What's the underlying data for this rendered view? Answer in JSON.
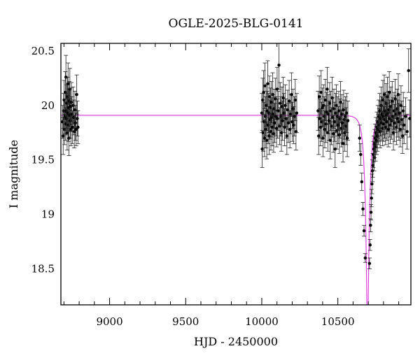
{
  "chart_data": {
    "type": "scatter",
    "title": "OGLE-2025-BLG-0141",
    "xlabel": "HJD - 2450000",
    "ylabel": "I magnitude",
    "xlim": [
      8680,
      10980
    ],
    "ylim": [
      20.57,
      18.17
    ],
    "y_inverted": true,
    "xticks": [
      9000,
      9500,
      10000,
      10500
    ],
    "yticks": [
      18.5,
      19,
      19.5,
      20,
      20.5
    ],
    "ytick_labels": [
      "18.5",
      "19",
      "19.5",
      "20",
      "20.5"
    ],
    "grid": false,
    "colors": {
      "points": "#000000",
      "model": "#e040e0"
    },
    "model": {
      "baseline_mag": 19.91,
      "peak_hjd": 10695,
      "peak_mag": 17.8,
      "t_E_days": 30
    },
    "series": [
      {
        "points": [
          [
            8691,
            19.85,
            0.15
          ],
          [
            8695,
            19.72,
            0.17
          ],
          [
            8698,
            19.95,
            0.16
          ],
          [
            8701,
            20.05,
            0.18
          ],
          [
            8704,
            19.78,
            0.14
          ],
          [
            8706,
            19.9,
            0.16
          ],
          [
            8709,
            20.12,
            0.19
          ],
          [
            8711,
            19.83,
            0.15
          ],
          [
            8713,
            20.26,
            0.2
          ],
          [
            8715,
            19.95,
            0.16
          ],
          [
            8717,
            19.88,
            0.15
          ],
          [
            8719,
            20.02,
            0.17
          ],
          [
            8721,
            19.75,
            0.16
          ],
          [
            8723,
            20.08,
            0.18
          ],
          [
            8725,
            19.93,
            0.16
          ],
          [
            8727,
            20.2,
            0.19
          ],
          [
            8729,
            19.82,
            0.15
          ],
          [
            8731,
            19.98,
            0.17
          ],
          [
            8733,
            19.7,
            0.16
          ],
          [
            8735,
            20.04,
            0.18
          ],
          [
            8737,
            19.91,
            0.15
          ],
          [
            8739,
            20.15,
            0.19
          ],
          [
            8741,
            19.86,
            0.16
          ],
          [
            8743,
            19.99,
            0.17
          ],
          [
            8746,
            19.78,
            0.15
          ],
          [
            8749,
            20.03,
            0.18
          ],
          [
            8752,
            19.92,
            0.16
          ],
          [
            8756,
            19.8,
            0.15
          ],
          [
            8760,
            20.0,
            0.17
          ],
          [
            8764,
            19.89,
            0.16
          ],
          [
            8768,
            19.76,
            0.15
          ],
          [
            8772,
            19.96,
            0.17
          ],
          [
            8776,
            19.84,
            0.16
          ],
          [
            8780,
            19.78,
            0.15
          ],
          [
            8784,
            20.1,
            0.18
          ],
          [
            8788,
            19.88,
            0.16
          ],
          [
            8792,
            19.8,
            0.15
          ],
          [
            10000,
            19.93,
            0.18
          ],
          [
            10003,
            19.6,
            0.17
          ],
          [
            10006,
            20.05,
            0.2
          ],
          [
            10009,
            19.75,
            0.17
          ],
          [
            10012,
            20.12,
            0.2
          ],
          [
            10015,
            19.85,
            0.18
          ],
          [
            10018,
            19.7,
            0.17
          ],
          [
            10021,
            20.18,
            0.21
          ],
          [
            10024,
            19.9,
            0.18
          ],
          [
            10027,
            19.78,
            0.17
          ],
          [
            10030,
            20.0,
            0.19
          ],
          [
            10033,
            19.68,
            0.17
          ],
          [
            10036,
            19.95,
            0.18
          ],
          [
            10039,
            20.2,
            0.21
          ],
          [
            10042,
            19.82,
            0.17
          ],
          [
            10045,
            19.93,
            0.18
          ],
          [
            10048,
            19.72,
            0.17
          ],
          [
            10051,
            20.08,
            0.19
          ],
          [
            10054,
            19.87,
            0.18
          ],
          [
            10057,
            19.98,
            0.18
          ],
          [
            10060,
            19.76,
            0.17
          ],
          [
            10063,
            20.03,
            0.19
          ],
          [
            10066,
            19.89,
            0.18
          ],
          [
            10069,
            19.8,
            0.17
          ],
          [
            10072,
            20.1,
            0.2
          ],
          [
            10075,
            19.92,
            0.18
          ],
          [
            10078,
            19.74,
            0.17
          ],
          [
            10081,
            19.97,
            0.18
          ],
          [
            10085,
            19.84,
            0.18
          ],
          [
            10089,
            20.06,
            0.19
          ],
          [
            10093,
            19.9,
            0.18
          ],
          [
            10097,
            19.79,
            0.17
          ],
          [
            10101,
            20.15,
            0.2
          ],
          [
            10105,
            19.88,
            0.18
          ],
          [
            10109,
            19.95,
            0.18
          ],
          [
            10113,
            20.37,
            0.22
          ],
          [
            10117,
            19.81,
            0.17
          ],
          [
            10121,
            20.02,
            0.19
          ],
          [
            10125,
            19.9,
            0.18
          ],
          [
            10129,
            19.75,
            0.17
          ],
          [
            10133,
            19.99,
            0.18
          ],
          [
            10137,
            19.86,
            0.18
          ],
          [
            10141,
            20.07,
            0.19
          ],
          [
            10145,
            19.93,
            0.18
          ],
          [
            10150,
            19.8,
            0.17
          ],
          [
            10155,
            20.0,
            0.19
          ],
          [
            10160,
            19.88,
            0.18
          ],
          [
            10165,
            19.72,
            0.17
          ],
          [
            10170,
            19.96,
            0.18
          ],
          [
            10175,
            19.84,
            0.18
          ],
          [
            10180,
            20.04,
            0.19
          ],
          [
            10185,
            19.78,
            0.17
          ],
          [
            10190,
            19.92,
            0.18
          ],
          [
            10195,
            20.1,
            0.2
          ],
          [
            10200,
            19.85,
            0.18
          ],
          [
            10205,
            19.97,
            0.18
          ],
          [
            10210,
            19.82,
            0.17
          ],
          [
            10215,
            19.9,
            0.18
          ],
          [
            10220,
            20.05,
            0.19
          ],
          [
            10225,
            19.76,
            0.17
          ],
          [
            10230,
            19.93,
            0.18
          ],
          [
            10370,
            19.95,
            0.18
          ],
          [
            10374,
            19.72,
            0.17
          ],
          [
            10378,
            20.08,
            0.19
          ],
          [
            10382,
            19.88,
            0.18
          ],
          [
            10386,
            19.8,
            0.17
          ],
          [
            10390,
            20.12,
            0.2
          ],
          [
            10394,
            19.85,
            0.18
          ],
          [
            10398,
            19.98,
            0.18
          ],
          [
            10402,
            19.7,
            0.17
          ],
          [
            10406,
            20.0,
            0.19
          ],
          [
            10410,
            19.9,
            0.18
          ],
          [
            10414,
            19.78,
            0.17
          ],
          [
            10418,
            20.05,
            0.19
          ],
          [
            10422,
            19.83,
            0.17
          ],
          [
            10426,
            19.94,
            0.18
          ],
          [
            10430,
            20.15,
            0.2
          ],
          [
            10434,
            19.75,
            0.17
          ],
          [
            10438,
            19.92,
            0.18
          ],
          [
            10442,
            19.86,
            0.18
          ],
          [
            10446,
            20.02,
            0.19
          ],
          [
            10450,
            19.68,
            0.17
          ],
          [
            10454,
            19.95,
            0.18
          ],
          [
            10458,
            19.81,
            0.17
          ],
          [
            10462,
            20.07,
            0.19
          ],
          [
            10466,
            19.89,
            0.18
          ],
          [
            10470,
            19.74,
            0.17
          ],
          [
            10474,
            19.97,
            0.18
          ],
          [
            10478,
            19.85,
            0.18
          ],
          [
            10482,
            19.6,
            0.17
          ],
          [
            10486,
            19.93,
            0.18
          ],
          [
            10490,
            20.0,
            0.19
          ],
          [
            10494,
            19.77,
            0.17
          ],
          [
            10498,
            19.9,
            0.18
          ],
          [
            10502,
            19.82,
            0.17
          ],
          [
            10506,
            19.95,
            0.18
          ],
          [
            10510,
            19.73,
            0.17
          ],
          [
            10514,
            19.88,
            0.18
          ],
          [
            10518,
            20.03,
            0.19
          ],
          [
            10522,
            19.79,
            0.17
          ],
          [
            10526,
            19.92,
            0.18
          ],
          [
            10530,
            19.84,
            0.18
          ],
          [
            10534,
            19.65,
            0.17
          ],
          [
            10538,
            19.96,
            0.18
          ],
          [
            10542,
            19.87,
            0.18
          ],
          [
            10546,
            19.75,
            0.17
          ],
          [
            10550,
            19.9,
            0.18
          ],
          [
            10554,
            19.81,
            0.17
          ],
          [
            10558,
            19.93,
            0.18
          ],
          [
            10562,
            19.7,
            0.17
          ],
          [
            10566,
            19.86,
            0.18
          ],
          [
            10643,
            19.7,
            0.12
          ],
          [
            10650,
            19.55,
            0.1
          ],
          [
            10657,
            19.3,
            0.08
          ],
          [
            10665,
            19.05,
            0.06
          ],
          [
            10672,
            18.85,
            0.05
          ],
          [
            10680,
            18.6,
            0.04
          ],
          [
            10708,
            18.55,
            0.05
          ],
          [
            10712,
            18.72,
            0.05
          ],
          [
            10715,
            18.9,
            0.06
          ],
          [
            10718,
            19.02,
            0.07
          ],
          [
            10721,
            19.15,
            0.08
          ],
          [
            10724,
            19.28,
            0.09
          ],
          [
            10727,
            19.4,
            0.1
          ],
          [
            10730,
            19.45,
            0.11
          ],
          [
            10733,
            19.55,
            0.12
          ],
          [
            10736,
            19.6,
            0.12
          ],
          [
            10739,
            19.52,
            0.12
          ],
          [
            10742,
            19.65,
            0.13
          ],
          [
            10745,
            19.7,
            0.13
          ],
          [
            10748,
            19.62,
            0.13
          ],
          [
            10751,
            19.75,
            0.14
          ],
          [
            10754,
            19.68,
            0.13
          ],
          [
            10757,
            19.8,
            0.14
          ],
          [
            10760,
            19.72,
            0.14
          ],
          [
            10763,
            19.85,
            0.15
          ],
          [
            10766,
            19.78,
            0.14
          ],
          [
            10769,
            19.9,
            0.15
          ],
          [
            10772,
            19.82,
            0.15
          ],
          [
            10775,
            19.95,
            0.16
          ],
          [
            10778,
            19.76,
            0.15
          ],
          [
            10781,
            19.88,
            0.16
          ],
          [
            10784,
            20.0,
            0.17
          ],
          [
            10787,
            19.84,
            0.16
          ],
          [
            10790,
            19.92,
            0.16
          ],
          [
            10793,
            19.79,
            0.16
          ],
          [
            10796,
            20.05,
            0.18
          ],
          [
            10799,
            19.9,
            0.17
          ],
          [
            10802,
            19.83,
            0.16
          ],
          [
            10805,
            20.1,
            0.18
          ],
          [
            10808,
            19.87,
            0.17
          ],
          [
            10811,
            19.95,
            0.17
          ],
          [
            10814,
            19.8,
            0.16
          ],
          [
            10817,
            20.02,
            0.18
          ],
          [
            10820,
            19.91,
            0.17
          ],
          [
            10823,
            19.85,
            0.17
          ],
          [
            10826,
            20.08,
            0.18
          ],
          [
            10829,
            19.93,
            0.17
          ],
          [
            10832,
            19.78,
            0.16
          ],
          [
            10835,
            19.96,
            0.17
          ],
          [
            10838,
            20.12,
            0.19
          ],
          [
            10841,
            19.88,
            0.17
          ],
          [
            10845,
            19.82,
            0.17
          ],
          [
            10849,
            19.99,
            0.18
          ],
          [
            10853,
            19.86,
            0.17
          ],
          [
            10857,
            20.04,
            0.18
          ],
          [
            10861,
            19.9,
            0.17
          ],
          [
            10865,
            19.75,
            0.16
          ],
          [
            10869,
            19.95,
            0.17
          ],
          [
            10873,
            19.84,
            0.17
          ],
          [
            10877,
            20.06,
            0.18
          ],
          [
            10881,
            19.92,
            0.17
          ],
          [
            10885,
            19.8,
            0.16
          ],
          [
            10889,
            19.97,
            0.18
          ],
          [
            10893,
            19.88,
            0.17
          ],
          [
            10897,
            20.1,
            0.19
          ],
          [
            10901,
            19.85,
            0.17
          ],
          [
            10905,
            19.93,
            0.17
          ],
          [
            10910,
            19.78,
            0.16
          ],
          [
            10915,
            20.0,
            0.18
          ],
          [
            10920,
            19.87,
            0.17
          ],
          [
            10925,
            19.72,
            0.16
          ],
          [
            10930,
            19.95,
            0.17
          ],
          [
            10935,
            19.82,
            0.17
          ],
          [
            10945,
            19.9,
            0.17
          ],
          [
            10955,
            19.76,
            0.16
          ],
          [
            10965,
            20.32,
            0.2
          ],
          [
            10972,
            19.88,
            0.17
          ]
        ]
      }
    ]
  }
}
